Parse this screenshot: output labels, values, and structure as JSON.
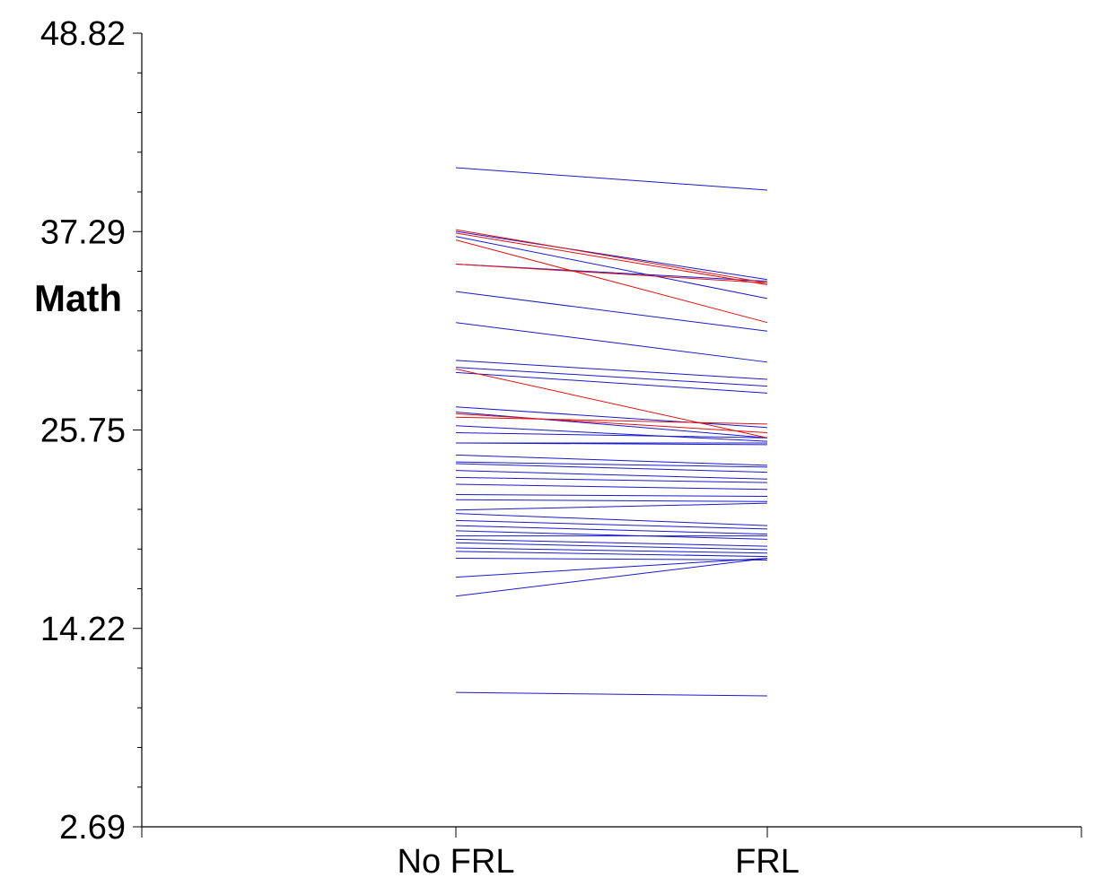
{
  "chart_data": {
    "type": "line",
    "title": "",
    "xlabel": "",
    "ylabel": "Math",
    "categories": [
      "No FRL",
      "FRL"
    ],
    "ylim": [
      2.69,
      48.82
    ],
    "yticks": [
      "48.82",
      "37.29",
      "25.75",
      "14.22",
      "2.69"
    ],
    "grid": false,
    "legend": "none",
    "colors": {
      "blue": "#1a1acc",
      "red": "#e01010",
      "axis": "#000000"
    },
    "series": [
      {
        "color": "blue",
        "values": [
          41.0,
          39.7
        ]
      },
      {
        "color": "blue",
        "values": [
          37.3,
          34.5
        ]
      },
      {
        "color": "blue",
        "values": [
          37.0,
          33.4
        ]
      },
      {
        "color": "blue",
        "values": [
          35.4,
          34.4
        ]
      },
      {
        "color": "blue",
        "values": [
          33.8,
          31.5
        ]
      },
      {
        "color": "blue",
        "values": [
          32.0,
          29.7
        ]
      },
      {
        "color": "blue",
        "values": [
          29.8,
          28.7
        ]
      },
      {
        "color": "blue",
        "values": [
          29.4,
          28.3
        ]
      },
      {
        "color": "blue",
        "values": [
          29.1,
          27.9
        ]
      },
      {
        "color": "blue",
        "values": [
          27.1,
          25.9
        ]
      },
      {
        "color": "blue",
        "values": [
          26.8,
          25.3
        ]
      },
      {
        "color": "blue",
        "values": [
          26.0,
          25.1
        ]
      },
      {
        "color": "blue",
        "values": [
          25.6,
          25.3
        ]
      },
      {
        "color": "blue",
        "values": [
          25.0,
          24.9
        ]
      },
      {
        "color": "blue",
        "values": [
          25.0,
          25.0
        ]
      },
      {
        "color": "blue",
        "values": [
          24.3,
          23.7
        ]
      },
      {
        "color": "blue",
        "values": [
          23.9,
          23.6
        ]
      },
      {
        "color": "blue",
        "values": [
          23.8,
          23.3
        ]
      },
      {
        "color": "blue",
        "values": [
          23.4,
          22.9
        ]
      },
      {
        "color": "blue",
        "values": [
          23.0,
          22.7
        ]
      },
      {
        "color": "blue",
        "values": [
          22.6,
          22.3
        ]
      },
      {
        "color": "blue",
        "values": [
          22.0,
          21.9
        ]
      },
      {
        "color": "blue",
        "values": [
          21.7,
          21.6
        ]
      },
      {
        "color": "blue",
        "values": [
          21.1,
          21.5
        ]
      },
      {
        "color": "blue",
        "values": [
          20.9,
          20.2
        ]
      },
      {
        "color": "blue",
        "values": [
          20.5,
          20.0
        ]
      },
      {
        "color": "blue",
        "values": [
          20.2,
          19.7
        ]
      },
      {
        "color": "blue",
        "values": [
          19.9,
          19.4
        ]
      },
      {
        "color": "blue",
        "values": [
          19.6,
          19.6
        ]
      },
      {
        "color": "blue",
        "values": [
          19.4,
          19.0
        ]
      },
      {
        "color": "blue",
        "values": [
          19.2,
          18.8
        ]
      },
      {
        "color": "blue",
        "values": [
          18.9,
          18.6
        ]
      },
      {
        "color": "blue",
        "values": [
          18.7,
          18.4
        ]
      },
      {
        "color": "blue",
        "values": [
          18.3,
          18.2
        ]
      },
      {
        "color": "blue",
        "values": [
          17.2,
          18.3
        ]
      },
      {
        "color": "blue",
        "values": [
          16.1,
          18.3
        ]
      },
      {
        "color": "blue",
        "values": [
          10.5,
          10.3
        ]
      },
      {
        "color": "red",
        "values": [
          37.4,
          34.3
        ]
      },
      {
        "color": "red",
        "values": [
          37.2,
          34.2
        ]
      },
      {
        "color": "red",
        "values": [
          36.8,
          32.0
        ]
      },
      {
        "color": "red",
        "values": [
          35.4,
          34.3
        ]
      },
      {
        "color": "red",
        "values": [
          29.3,
          25.3
        ]
      },
      {
        "color": "red",
        "values": [
          26.7,
          25.6
        ]
      },
      {
        "color": "red",
        "values": [
          26.5,
          26.1
        ]
      }
    ]
  }
}
